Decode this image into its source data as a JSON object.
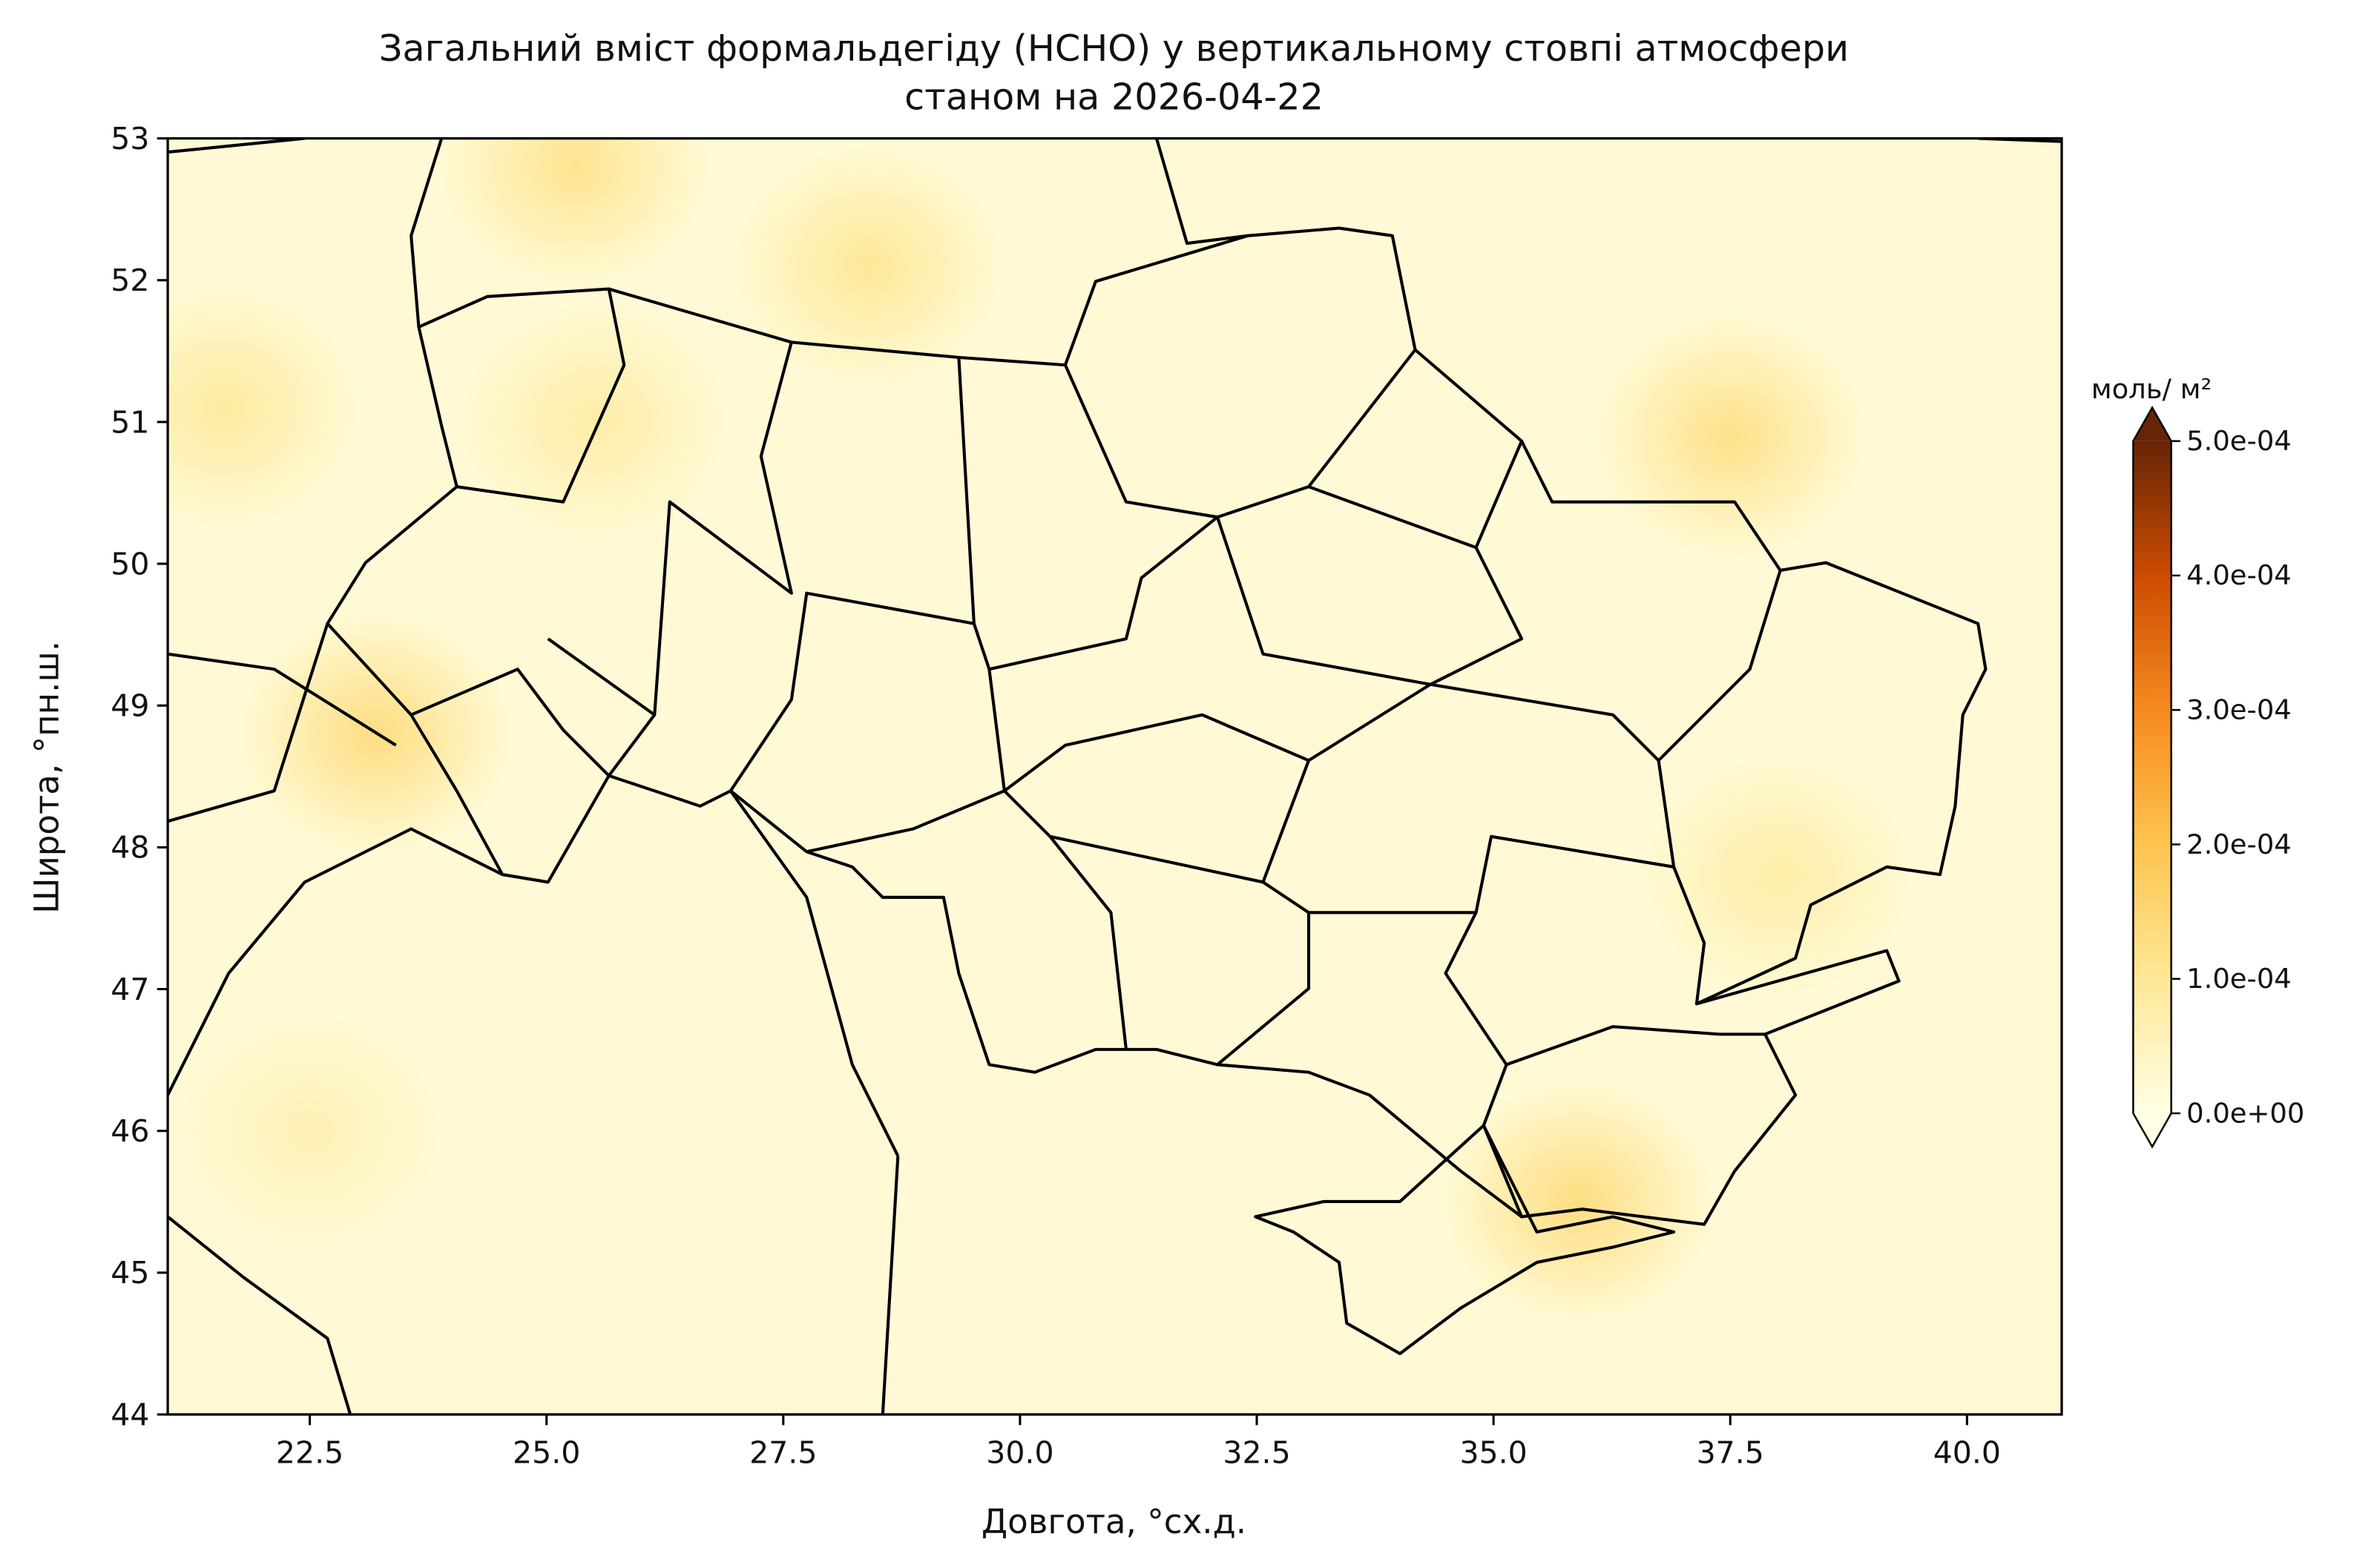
{
  "chart_data": {
    "type": "map",
    "title": "Загальний вміст формальдегіду (HCHO) у вертикальному стовпі атмосфери",
    "subtitle": "станом на 2026-04-22",
    "xlabel": "Довгота, °сх.д.",
    "ylabel": "Широта, °пн.ш.",
    "xlim": [
      21,
      41
    ],
    "ylim": [
      44,
      53
    ],
    "xticks": [
      {
        "value": 22.5,
        "label": "22.5"
      },
      {
        "value": 25,
        "label": "25.0"
      },
      {
        "value": 27.5,
        "label": "27.5"
      },
      {
        "value": 30,
        "label": "30.0"
      },
      {
        "value": 32.5,
        "label": "32.5"
      },
      {
        "value": 35,
        "label": "35.0"
      },
      {
        "value": 37.5,
        "label": "37.5"
      },
      {
        "value": 40,
        "label": "40.0"
      }
    ],
    "yticks": [
      44,
      45,
      46,
      47,
      48,
      49,
      50,
      51,
      52,
      53
    ],
    "colorbar": {
      "label": "моль/ м²",
      "lim": [
        0,
        0.0005
      ],
      "ticks": [
        {
          "value": 0,
          "label": "0.0e+00"
        },
        {
          "value": 0.0001,
          "label": "1.0e-04"
        },
        {
          "value": 0.0002,
          "label": "2.0e-04"
        },
        {
          "value": 0.0003,
          "label": "3.0e-04"
        },
        {
          "value": 0.0004,
          "label": "4.0e-04"
        },
        {
          "value": 0.0005,
          "label": "5.0e-04"
        }
      ],
      "colormap": [
        "#ffffe5",
        "#fee897",
        "#fec44f",
        "#f68a1f",
        "#cc4c02",
        "#662506"
      ]
    },
    "background_value": 2e-05,
    "hotspots": [
      {
        "lon": 23.2,
        "lat": 48.8,
        "value": 0.00013
      },
      {
        "lon": 37.5,
        "lat": 50.9,
        "value": 0.00012
      },
      {
        "lon": 35.9,
        "lat": 45.5,
        "value": 0.00013
      },
      {
        "lon": 25.3,
        "lat": 52.8,
        "value": 0.00011
      },
      {
        "lon": 28.4,
        "lat": 52.1,
        "value": 0.0001
      },
      {
        "lon": 21.6,
        "lat": 51.1,
        "value": 9e-05
      },
      {
        "lon": 25.5,
        "lat": 51.0,
        "value": 8e-05
      },
      {
        "lon": 38.0,
        "lat": 47.8,
        "value": 8e-05
      },
      {
        "lon": 22.5,
        "lat": 46.0,
        "value": 6e-05
      }
    ]
  }
}
